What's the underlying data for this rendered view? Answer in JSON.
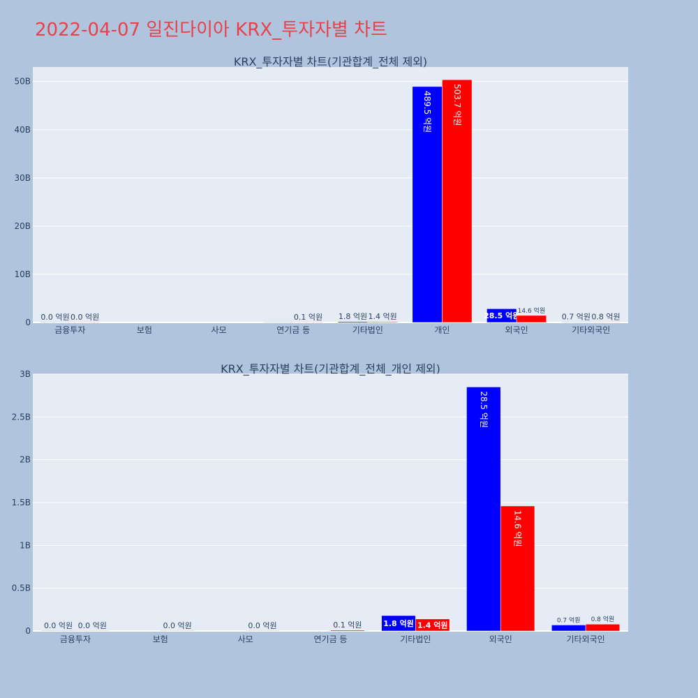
{
  "page_title": "2022-04-07 일진다이아 KRX_투자자별 차트",
  "colors": {
    "background": "#b0c4de",
    "plot_bg": "#e5ecf6",
    "title": "#e8414a",
    "series_1": "#0000ff",
    "series_2": "#ff0000"
  },
  "chart_data": [
    {
      "type": "bar",
      "title": "KRX_투자자별 차트(기관합계_전체 제외)",
      "categories": [
        "금융투자",
        "보험",
        "사모",
        "연기금 등",
        "기타법인",
        "개인",
        "외국인",
        "기타외국인"
      ],
      "ylim": [
        0,
        53000000000
      ],
      "yticks": [
        0,
        10000000000,
        20000000000,
        30000000000,
        40000000000,
        50000000000
      ],
      "ytick_labels": [
        "0",
        "10B",
        "20B",
        "30B",
        "40B",
        "50B"
      ],
      "grid": true,
      "series": [
        {
          "color": "#0000ff",
          "values": [
            0,
            null,
            null,
            0,
            180000000,
            48950000000,
            2850000000,
            70000000
          ],
          "labels": [
            "0.0 억원",
            "",
            "",
            "",
            "1.8 억원",
            "489.5 억원",
            "28.5 억원",
            "0.7 억원"
          ]
        },
        {
          "color": "#ff0000",
          "values": [
            0,
            null,
            null,
            10000000,
            140000000,
            50370000000,
            1460000000,
            80000000
          ],
          "labels": [
            "0.0 억원",
            "",
            "",
            "0.1 억원",
            "1.4 억원",
            "503.7 억원",
            "14.6 억원",
            "0.8 억원"
          ]
        }
      ]
    },
    {
      "type": "bar",
      "title": "KRX_투자자별 차트(기관합계_전체_개인 제외)",
      "categories": [
        "금융투자",
        "보험",
        "사모",
        "연기금 등",
        "기타법인",
        "외국인",
        "기타외국인"
      ],
      "ylim": [
        0,
        3000000000
      ],
      "yticks": [
        0,
        500000000,
        1000000000,
        1500000000,
        2000000000,
        2500000000,
        3000000000
      ],
      "ytick_labels": [
        "0",
        "0.5B",
        "1B",
        "1.5B",
        "2B",
        "2.5B",
        "3B"
      ],
      "grid": true,
      "series": [
        {
          "color": "#0000ff",
          "values": [
            0,
            null,
            null,
            null,
            180000000,
            2850000000,
            70000000
          ],
          "labels": [
            "0.0 억원",
            "",
            "",
            "",
            "1.8 억원",
            "28.5 억원",
            "0.7 억원"
          ]
        },
        {
          "color": "#ff0000",
          "values": [
            0,
            0,
            0,
            10000000,
            140000000,
            1460000000,
            80000000
          ],
          "labels": [
            "0.0 억원",
            "0.0 억원",
            "0.0 억원",
            "0.1 억원",
            "1.4 억원",
            "14.6 억원",
            "0.8 억원"
          ]
        }
      ]
    }
  ]
}
